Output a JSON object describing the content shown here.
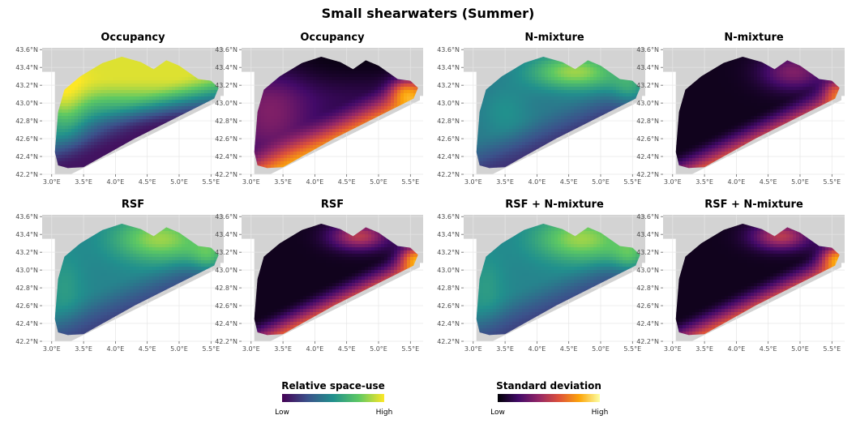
{
  "figure": {
    "title": "Small shearwaters (Summer)"
  },
  "chart_data": {
    "type": "heatmap",
    "title": "Small shearwaters (Summer)",
    "x_ticks": [
      "3.0°E",
      "3.5°E",
      "4.0°E",
      "4.5°E",
      "5.0°E",
      "5.5°E"
    ],
    "y_ticks": [
      "43.6°N",
      "43.4°N",
      "43.2°N",
      "43.0°N",
      "42.8°N",
      "42.6°N",
      "42.4°N",
      "42.2°N"
    ],
    "xlim": [
      2.85,
      5.7
    ],
    "ylim": [
      42.2,
      43.62
    ],
    "grid": true,
    "panels": [
      {
        "title": "Occupancy",
        "quantity": "Relative space-use",
        "palette": "viridis"
      },
      {
        "title": "Occupancy",
        "quantity": "Standard deviation",
        "palette": "inferno"
      },
      {
        "title": "N-mixture",
        "quantity": "Relative space-use",
        "palette": "viridis"
      },
      {
        "title": "N-mixture",
        "quantity": "Standard deviation",
        "palette": "inferno"
      },
      {
        "title": "RSF",
        "quantity": "Relative space-use",
        "palette": "viridis"
      },
      {
        "title": "RSF",
        "quantity": "Standard deviation",
        "palette": "inferno"
      },
      {
        "title": "RSF + N-mixture",
        "quantity": "Relative space-use",
        "palette": "viridis"
      },
      {
        "title": "RSF + N-mixture",
        "quantity": "Standard deviation",
        "palette": "inferno"
      }
    ],
    "legends": [
      {
        "title": "Relative space-use",
        "low": "Low",
        "high": "High",
        "palette": "viridis",
        "colors": [
          "#440154",
          "#3b528b",
          "#21908d",
          "#5dc863",
          "#fde725"
        ]
      },
      {
        "title": "Standard deviation",
        "low": "Low",
        "high": "High",
        "palette": "inferno",
        "colors": [
          "#000004",
          "#420a68",
          "#932667",
          "#dd513a",
          "#fca50a",
          "#fcffa4"
        ]
      }
    ],
    "land_color": "#d3d3d3",
    "legend_position": "bottom"
  }
}
